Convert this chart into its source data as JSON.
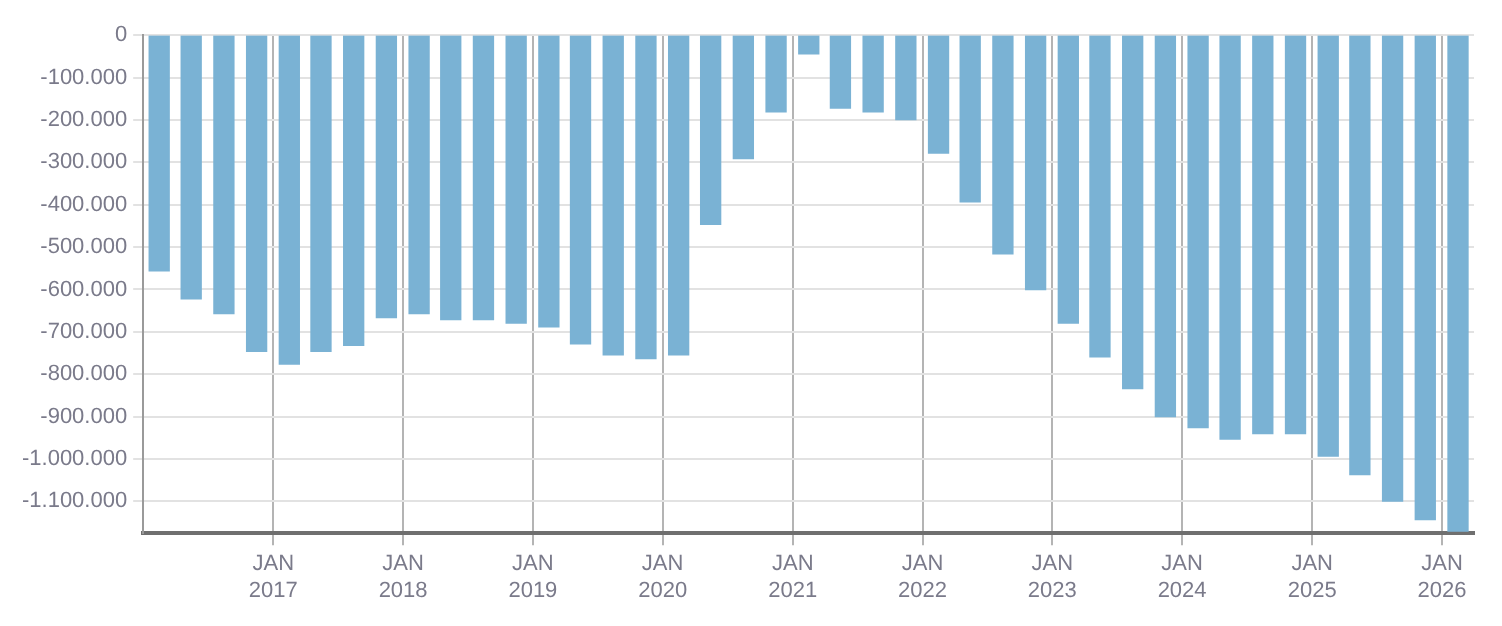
{
  "chart_data": {
    "type": "bar",
    "color": "#7ab2d4",
    "x": [
      "2016-02-15",
      "2016-05-15",
      "2016-08-15",
      "2016-11-15",
      "2017-02-15",
      "2017-05-15",
      "2017-08-15",
      "2017-11-15",
      "2018-02-15",
      "2018-05-15",
      "2018-08-15",
      "2018-11-15",
      "2019-02-15",
      "2019-05-15",
      "2019-08-15",
      "2019-11-15",
      "2020-02-15",
      "2020-05-15",
      "2020-08-15",
      "2020-11-15",
      "2021-02-15",
      "2021-05-15",
      "2021-08-15",
      "2021-11-15",
      "2022-02-15",
      "2022-05-15",
      "2022-08-15",
      "2022-11-15",
      "2023-02-15",
      "2023-05-15",
      "2023-08-15",
      "2023-11-15",
      "2024-02-15",
      "2024-05-15",
      "2024-08-15",
      "2024-11-15",
      "2025-02-15",
      "2025-05-15",
      "2025-08-15",
      "2025-11-15",
      "2026-02-15"
    ],
    "values": [
      -556000,
      -622000,
      -657000,
      -746000,
      -776000,
      -746000,
      -732000,
      -666000,
      -657000,
      -671000,
      -671000,
      -679000,
      -688000,
      -728000,
      -754000,
      -763000,
      -754000,
      -446000,
      -291000,
      -181000,
      -44000,
      -172000,
      -181000,
      -199000,
      -278000,
      -393000,
      -516000,
      -600000,
      -679000,
      -759000,
      -834000,
      -900000,
      -926000,
      -953000,
      -940000,
      -940000,
      -993000,
      -1037000,
      -1099000,
      -1143000,
      -1170000
    ],
    "xlim": [
      "2016-01-01",
      "2026-04-01"
    ],
    "xticks": [
      {
        "value": "2017-01-01",
        "label": "JAN\n2017"
      },
      {
        "value": "2018-01-01",
        "label": "JAN\n2018"
      },
      {
        "value": "2019-01-01",
        "label": "JAN\n2019"
      },
      {
        "value": "2020-01-01",
        "label": "JAN\n2020"
      },
      {
        "value": "2021-01-01",
        "label": "JAN\n2021"
      },
      {
        "value": "2022-01-01",
        "label": "JAN\n2022"
      },
      {
        "value": "2023-01-01",
        "label": "JAN\n2023"
      },
      {
        "value": "2024-01-01",
        "label": "JAN\n2024"
      },
      {
        "value": "2025-01-01",
        "label": "JAN\n2025"
      },
      {
        "value": "2026-01-01",
        "label": "JAN\n2026"
      }
    ],
    "ylim": [
      -1175000,
      0
    ],
    "yticks": [
      0,
      {
        "value": -100000,
        "label": "-100.000"
      },
      {
        "value": -200000,
        "label": "-200.000"
      },
      {
        "value": -300000,
        "label": "-300.000"
      },
      {
        "value": -400000,
        "label": "-400.000"
      },
      {
        "value": -500000,
        "label": "-500.000"
      },
      {
        "value": -600000,
        "label": "-600.000"
      },
      {
        "value": -700000,
        "label": "-700.000"
      },
      {
        "value": -800000,
        "label": "-800.000"
      },
      {
        "value": -900000,
        "label": "-900.000"
      },
      {
        "value": -1000000,
        "label": "-1.000.000"
      },
      {
        "value": -1100000,
        "label": "-1.100.000"
      }
    ],
    "grid": true,
    "legend": false
  }
}
